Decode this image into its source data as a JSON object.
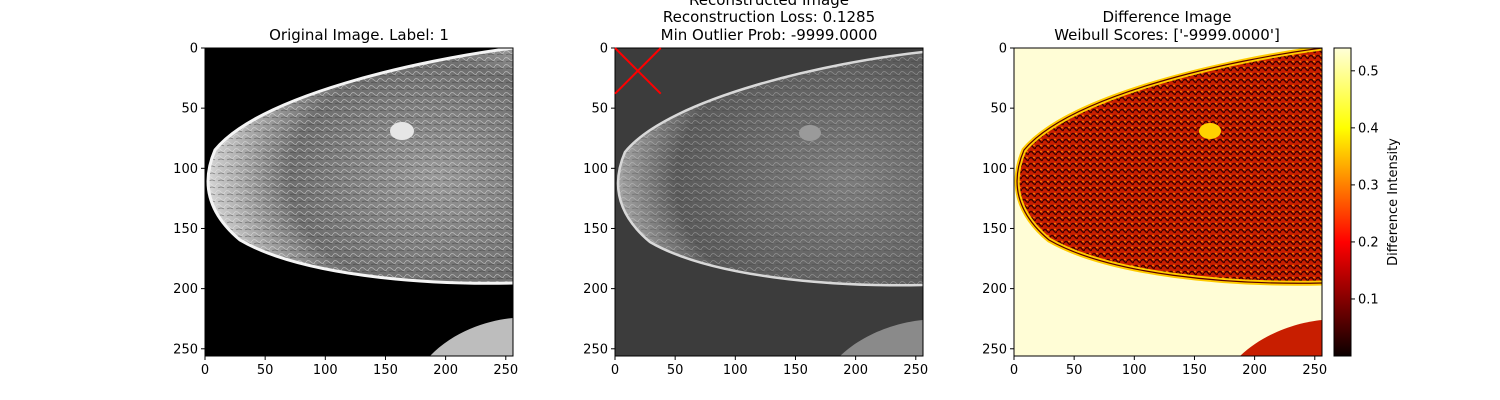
{
  "chart_data": [
    {
      "type": "image",
      "title_lines": [
        "Original Image. Label: 1"
      ],
      "xlim": [
        0,
        256
      ],
      "ylim": [
        256,
        0
      ],
      "x_ticks": [
        0,
        50,
        100,
        150,
        200,
        250
      ],
      "y_ticks": [
        0,
        50,
        100,
        150,
        200,
        250
      ],
      "colormap": "gray",
      "image_description": "mammogram, breast facing left"
    },
    {
      "type": "image",
      "title_lines": [
        "Reconstructed Image",
        "Reconstruction Loss: 0.1285",
        "Min Outlier Prob: -9999.0000"
      ],
      "xlim": [
        0,
        256
      ],
      "ylim": [
        256,
        0
      ],
      "x_ticks": [
        0,
        50,
        100,
        150,
        200,
        250
      ],
      "y_ticks": [
        0,
        50,
        100,
        150,
        200,
        250
      ],
      "colormap": "gray",
      "marker": {
        "shape": "x",
        "color": "#ff0000",
        "x_range": [
          0,
          38
        ],
        "y_range": [
          0,
          38
        ]
      }
    },
    {
      "type": "heatmap",
      "title_lines": [
        "Difference Image",
        "Weibull Scores: ['-9999.0000']"
      ],
      "xlim": [
        0,
        256
      ],
      "ylim": [
        256,
        0
      ],
      "x_ticks": [
        0,
        50,
        100,
        150,
        200,
        250
      ],
      "y_ticks": [
        0,
        50,
        100,
        150,
        200,
        250
      ],
      "colormap": "hot",
      "colorbar": {
        "label": "Difference Intensity",
        "range": [
          0.0,
          0.54
        ],
        "ticks": [
          0.1,
          0.2,
          0.3,
          0.4,
          0.5
        ],
        "tick_labels": [
          "0.1",
          "0.2",
          "0.3",
          "0.4",
          "0.5"
        ]
      }
    }
  ]
}
